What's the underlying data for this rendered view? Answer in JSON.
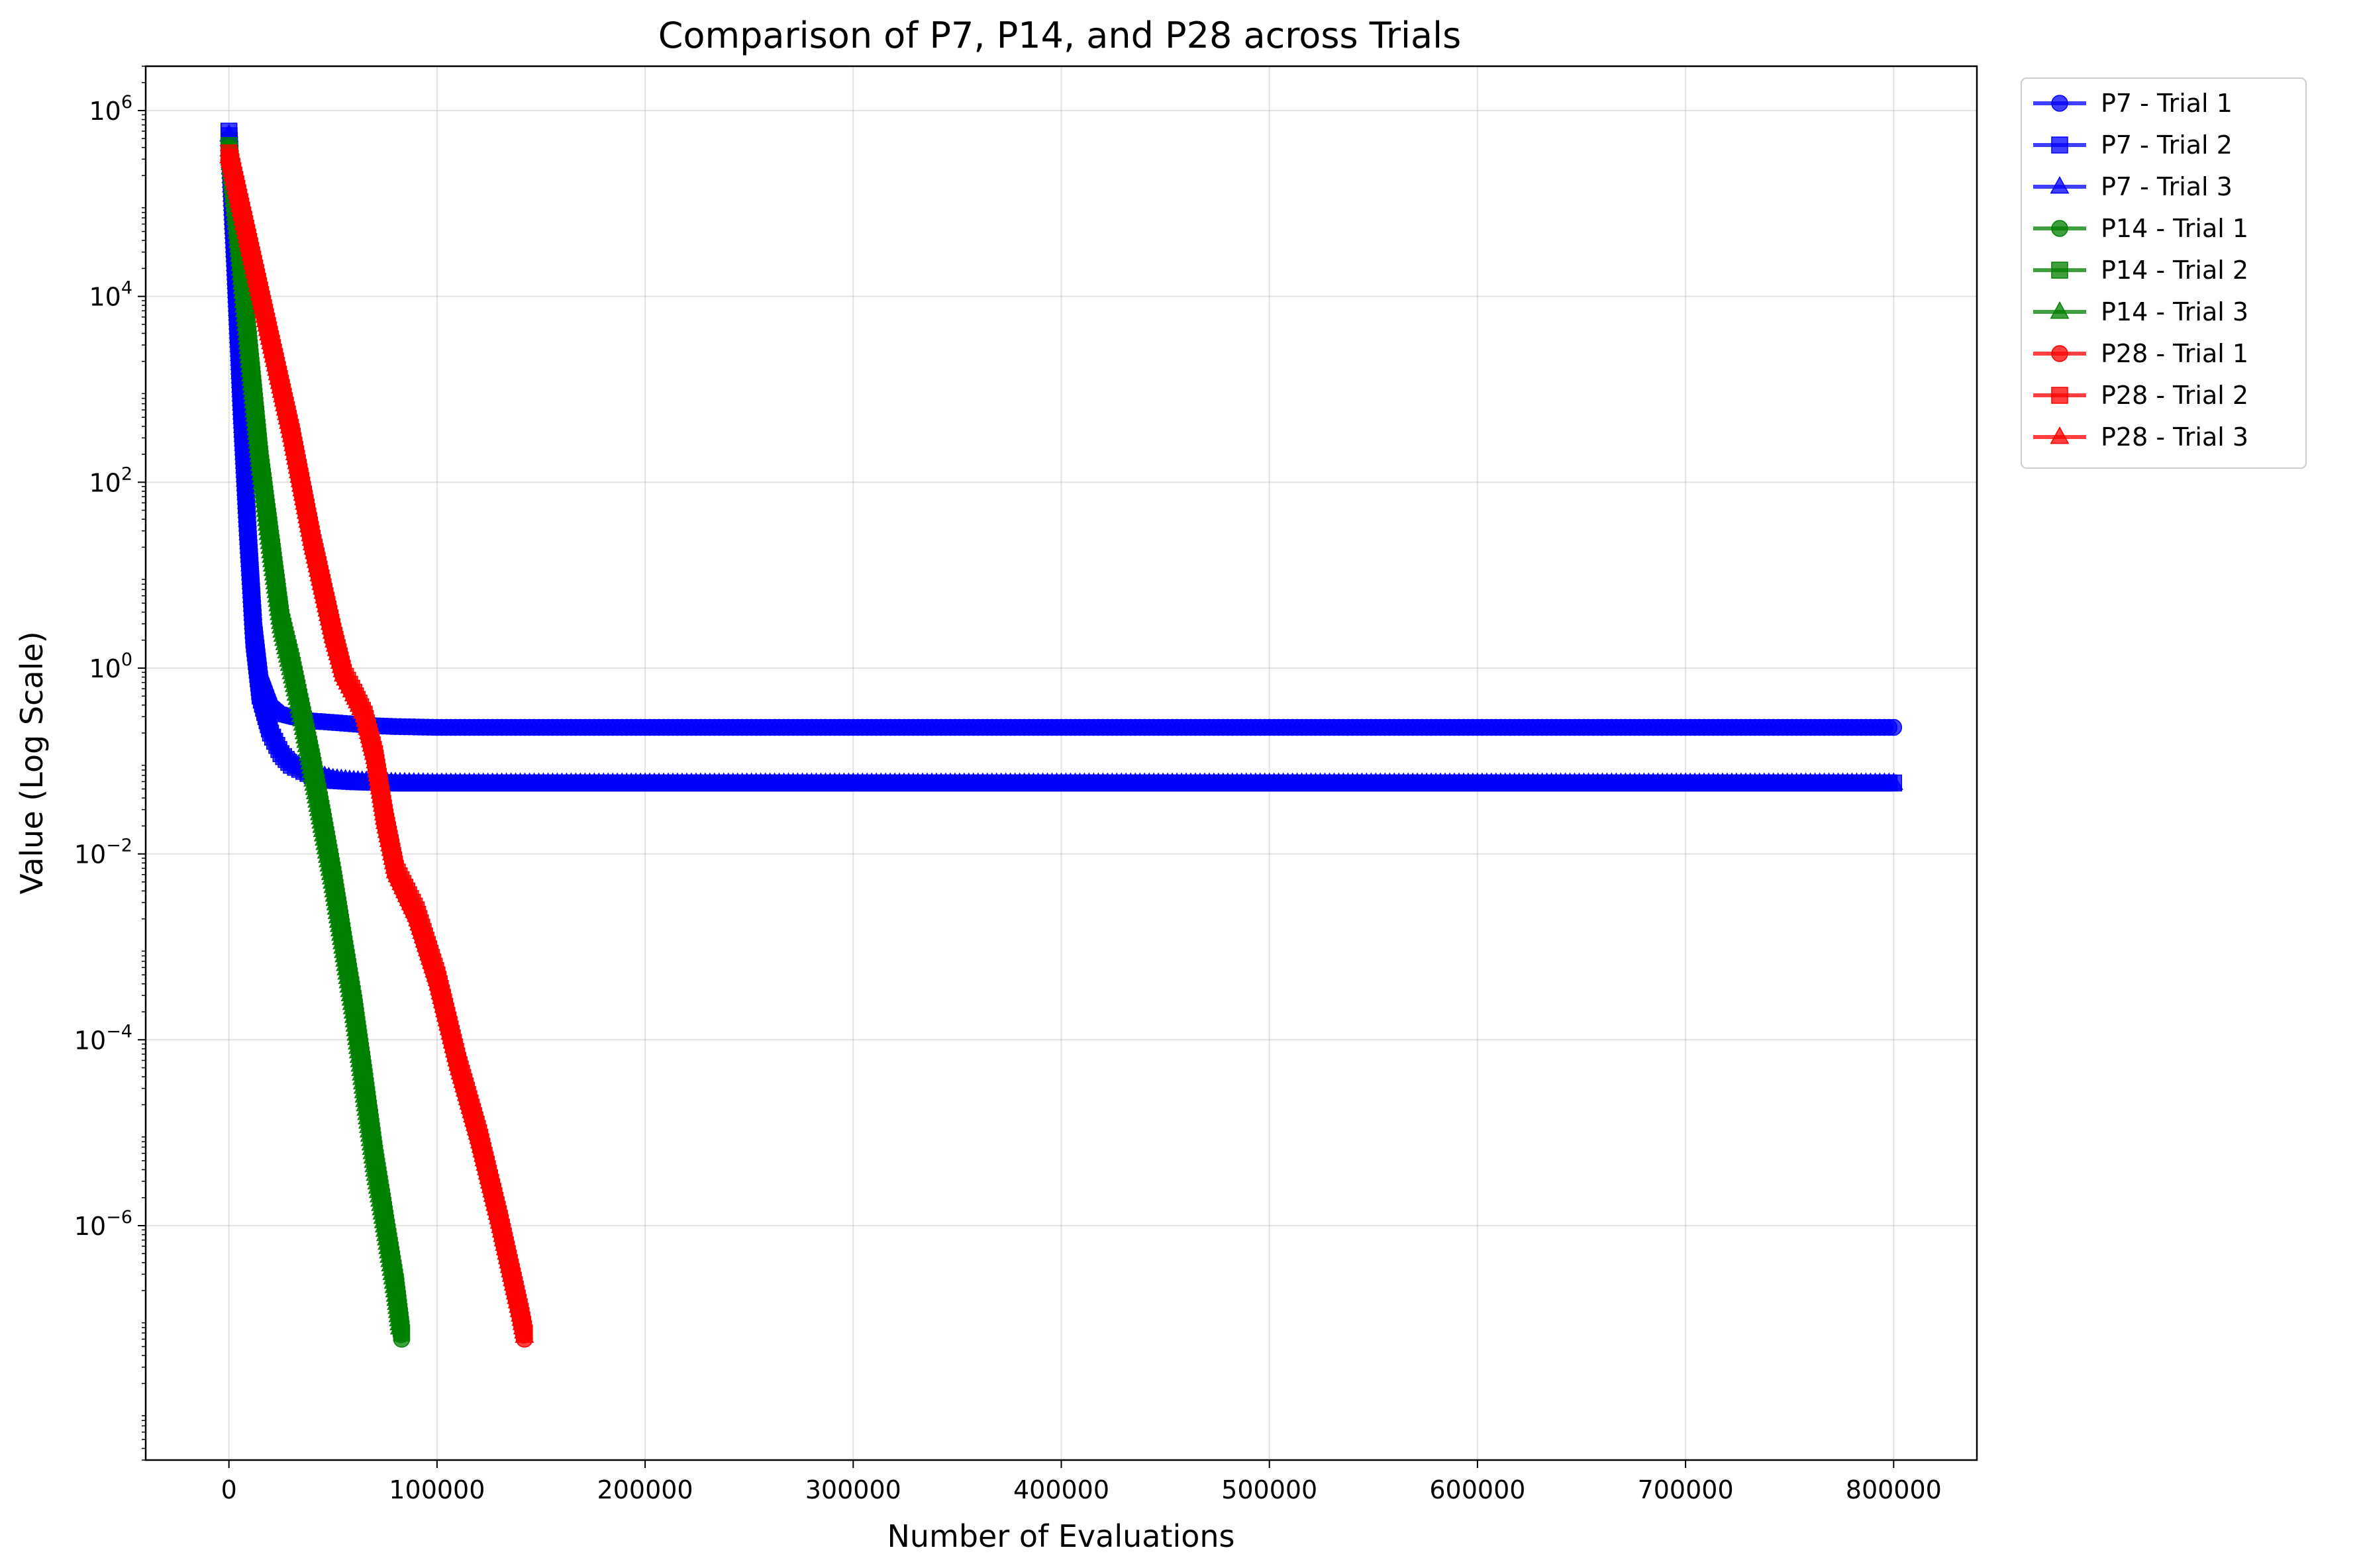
{
  "chart_data": {
    "type": "line",
    "title": "Comparison of P7, P14, and P28 across Trials",
    "xlabel": "Number of Evaluations",
    "ylabel": "Value (Log Scale)",
    "xlim": [
      -40000,
      840000
    ],
    "ylim": [
      3e-09,
      3000000.0
    ],
    "yscale": "log",
    "grid": true,
    "legend_position": "outside-top-right",
    "x_ticks": [
      0,
      100000,
      200000,
      300000,
      400000,
      500000,
      600000,
      700000,
      800000
    ],
    "x_tick_labels": [
      "0",
      "100000",
      "200000",
      "300000",
      "400000",
      "500000",
      "600000",
      "700000",
      "800000"
    ],
    "y_ticks": [
      1e-06,
      0.0001,
      0.01,
      1,
      100,
      10000,
      1000000
    ],
    "y_tick_bases": [
      "10",
      "10",
      "10",
      "10",
      "10",
      "10",
      "10"
    ],
    "y_tick_exponents": [
      "−6",
      "−4",
      "−2",
      "0",
      "2",
      "4",
      "6"
    ],
    "colors": {
      "P7": "#0000ff",
      "P14": "#008000",
      "P28": "#ff0000"
    },
    "series": [
      {
        "name": "P7 - Trial 1",
        "color": "#0000ff",
        "marker": "circle",
        "x": [
          0,
          3000,
          6000,
          9000,
          12000,
          15000,
          20000,
          25000,
          30000,
          40000,
          50000,
          60000,
          70000,
          80000,
          100000,
          200000,
          400000,
          600000,
          800000
        ],
        "y": [
          500000,
          30000,
          800,
          40,
          3,
          0.8,
          0.4,
          0.32,
          0.3,
          0.27,
          0.26,
          0.25,
          0.24,
          0.235,
          0.23,
          0.23,
          0.23,
          0.23,
          0.23
        ]
      },
      {
        "name": "P7 - Trial 2",
        "color": "#0000ff",
        "marker": "square",
        "x": [
          0,
          3000,
          6000,
          9000,
          12000,
          15000,
          20000,
          25000,
          30000,
          40000,
          50000,
          60000,
          70000,
          80000,
          100000,
          200000,
          400000,
          600000,
          800000
        ],
        "y": [
          600000,
          20000,
          600,
          30,
          2,
          0.5,
          0.2,
          0.12,
          0.09,
          0.07,
          0.062,
          0.06,
          0.059,
          0.058,
          0.058,
          0.058,
          0.058,
          0.058,
          0.058
        ]
      },
      {
        "name": "P7 - Trial 3",
        "color": "#0000ff",
        "marker": "triangle",
        "x": [
          0,
          3000,
          6000,
          9000,
          12000,
          15000,
          20000,
          25000,
          30000,
          40000,
          50000,
          60000,
          70000,
          80000,
          100000,
          200000,
          400000,
          600000,
          800000
        ],
        "y": [
          550000,
          25000,
          700,
          35,
          2.5,
          0.6,
          0.25,
          0.14,
          0.1,
          0.075,
          0.065,
          0.062,
          0.06,
          0.059,
          0.058,
          0.058,
          0.058,
          0.058,
          0.058
        ]
      },
      {
        "name": "P14 - Trial 1",
        "color": "#008000",
        "marker": "circle",
        "x": [
          0,
          5000,
          10000,
          15000,
          20000,
          25000,
          30000,
          35000,
          40000,
          45000,
          50000,
          55000,
          60000,
          65000,
          70000,
          75000,
          80000,
          83000
        ],
        "y": [
          400000,
          30000,
          2000,
          150,
          20,
          3,
          1,
          0.3,
          0.08,
          0.02,
          0.005,
          0.001,
          0.0002,
          3e-05,
          5e-06,
          1e-06,
          2e-07,
          6e-08
        ]
      },
      {
        "name": "P14 - Trial 2",
        "color": "#008000",
        "marker": "square",
        "x": [
          0,
          5000,
          10000,
          15000,
          20000,
          25000,
          30000,
          35000,
          40000,
          45000,
          50000,
          55000,
          60000,
          65000,
          70000,
          75000,
          80000,
          83000
        ],
        "y": [
          420000,
          35000,
          2500,
          180,
          25,
          3.5,
          1.2,
          0.35,
          0.1,
          0.025,
          0.006,
          0.0012,
          0.00025,
          4e-05,
          6e-06,
          1.2e-06,
          2.5e-07,
          7e-08
        ]
      },
      {
        "name": "P14 - Trial 3",
        "color": "#008000",
        "marker": "triangle",
        "x": [
          0,
          5000,
          10000,
          15000,
          20000,
          25000,
          30000,
          35000,
          40000,
          45000,
          50000,
          55000,
          60000,
          65000,
          70000,
          75000,
          80000,
          82000
        ],
        "y": [
          380000,
          28000,
          1800,
          140,
          18,
          2.8,
          0.9,
          0.28,
          0.07,
          0.018,
          0.0045,
          0.0009,
          0.00018,
          2.5e-05,
          4e-06,
          9e-07,
          1.8e-07,
          8e-08
        ]
      },
      {
        "name": "P28 - Trial 1",
        "color": "#ff0000",
        "marker": "circle",
        "x": [
          0,
          10000,
          20000,
          30000,
          40000,
          50000,
          55000,
          60000,
          65000,
          70000,
          75000,
          80000,
          90000,
          100000,
          110000,
          120000,
          130000,
          140000,
          142000
        ],
        "y": [
          300000,
          30000,
          3000,
          300,
          20,
          2,
          0.8,
          0.5,
          0.3,
          0.1,
          0.02,
          0.006,
          0.002,
          0.0004,
          5e-05,
          8e-06,
          1e-06,
          1e-07,
          6e-08
        ]
      },
      {
        "name": "P28 - Trial 2",
        "color": "#ff0000",
        "marker": "square",
        "x": [
          0,
          10000,
          20000,
          30000,
          40000,
          50000,
          55000,
          60000,
          65000,
          70000,
          75000,
          80000,
          90000,
          100000,
          110000,
          120000,
          130000,
          140000,
          142000
        ],
        "y": [
          350000,
          35000,
          3500,
          350,
          25,
          2.5,
          0.9,
          0.55,
          0.32,
          0.12,
          0.025,
          0.007,
          0.0025,
          0.0005,
          6e-05,
          1e-05,
          1.2e-06,
          1.2e-07,
          7e-08
        ]
      },
      {
        "name": "P28 - Trial 3",
        "color": "#ff0000",
        "marker": "triangle",
        "x": [
          0,
          10000,
          20000,
          30000,
          40000,
          50000,
          55000,
          60000,
          65000,
          70000,
          75000,
          80000,
          90000,
          100000,
          110000,
          120000,
          130000,
          140000,
          142000
        ],
        "y": [
          320000,
          32000,
          3200,
          320,
          22,
          2.2,
          0.85,
          0.52,
          0.31,
          0.11,
          0.022,
          0.0065,
          0.0022,
          0.00045,
          5.5e-05,
          9e-06,
          1.1e-06,
          1.1e-07,
          6.5e-08
        ]
      }
    ]
  }
}
